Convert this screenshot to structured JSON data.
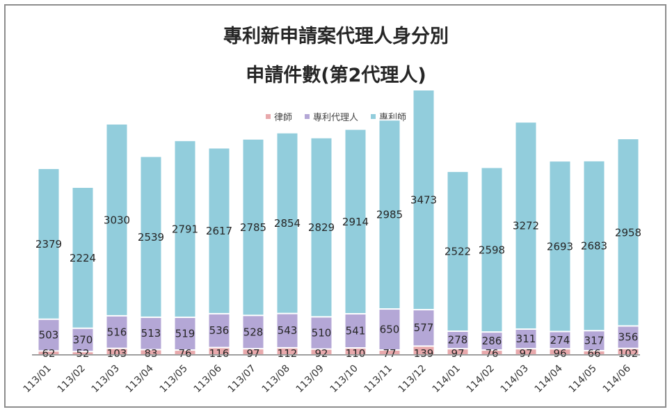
{
  "colors": {
    "lawyer": "#e8a9ac",
    "agent": "#b4a7d6",
    "attorney": "#92cddc",
    "axis": "#7f7f7f"
  },
  "chart_data": {
    "type": "bar",
    "stacked": true,
    "title": "專利新申請案代理人身分別",
    "subtitle": "申請件數(第2代理人)",
    "legend_position": "top",
    "categories": [
      "113/01",
      "113/02",
      "113/03",
      "113/04",
      "113/05",
      "113/06",
      "113/07",
      "113/08",
      "113/09",
      "113/10",
      "113/11",
      "113/12",
      "114/01",
      "114/02",
      "114/03",
      "114/04",
      "114/05",
      "114/06"
    ],
    "series": [
      {
        "name": "律師",
        "values": [
          62,
          52,
          103,
          83,
          76,
          116,
          97,
          112,
          92,
          110,
          77,
          139,
          97,
          76,
          97,
          96,
          66,
          102
        ]
      },
      {
        "name": "專利代理人",
        "values": [
          503,
          370,
          516,
          513,
          519,
          536,
          528,
          543,
          510,
          541,
          650,
          577,
          278,
          286,
          311,
          274,
          317,
          356
        ]
      },
      {
        "name": "專利師",
        "values": [
          2379,
          2224,
          3030,
          2539,
          2791,
          2617,
          2785,
          2854,
          2829,
          2914,
          2985,
          3473,
          2522,
          2598,
          3272,
          2693,
          2683,
          2958
        ]
      }
    ],
    "ylim": [
      0,
      4189
    ],
    "grid": false
  }
}
